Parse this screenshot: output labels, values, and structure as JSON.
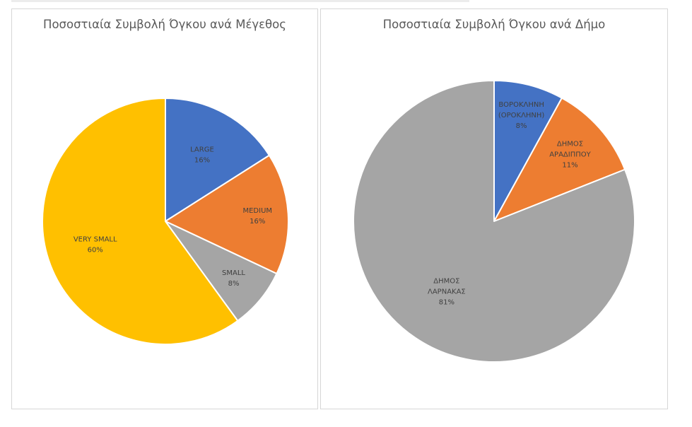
{
  "chart_data": [
    {
      "type": "pie",
      "title": "Ποσοστιαία Συμβολή Όγκου ανά Μέγεθος",
      "categories": [
        "LARGE",
        "MEDIUM",
        "SMALL",
        "VERY SMALL"
      ],
      "values": [
        16,
        16,
        8,
        60
      ],
      "labels": [
        {
          "lines": [
            "LARGE",
            "16%"
          ]
        },
        {
          "lines": [
            "MEDIUM",
            "16%"
          ]
        },
        {
          "lines": [
            "SMALL",
            "8%"
          ]
        },
        {
          "lines": [
            "VERY SMALL",
            "60%"
          ]
        }
      ],
      "colors": [
        "#4472c4",
        "#ed7d31",
        "#a5a5a5",
        "#ffc000"
      ],
      "legend": "none"
    },
    {
      "type": "pie",
      "title": "Ποσοστιαία Συμβολή Όγκου ανά Δήμο",
      "categories": [
        "ΒΟΡΟΚΛΗΝΗ (ΟΡΟΚΛΗΝΗ)",
        "ΔΗΜΟΣ ΑΡΑΔΙΠΠΟΥ",
        "ΔΗΜΟΣ ΛΑΡΝΑΚΑΣ"
      ],
      "values": [
        8,
        11,
        81
      ],
      "labels": [
        {
          "lines": [
            "ΒΟΡΟΚΛΗΝΗ",
            "(ΟΡΟΚΛΗΝΗ)",
            "8%"
          ]
        },
        {
          "lines": [
            "ΔΗΜΟΣ",
            "ΑΡΑΔΙΠΠΟΥ",
            "11%"
          ]
        },
        {
          "lines": [
            "ΔΗΜΟΣ",
            "ΛΑΡΝΑΚΑΣ",
            "81%"
          ]
        }
      ],
      "colors": [
        "#4472c4",
        "#ed7d31",
        "#a5a5a5"
      ],
      "legend": "none"
    }
  ]
}
